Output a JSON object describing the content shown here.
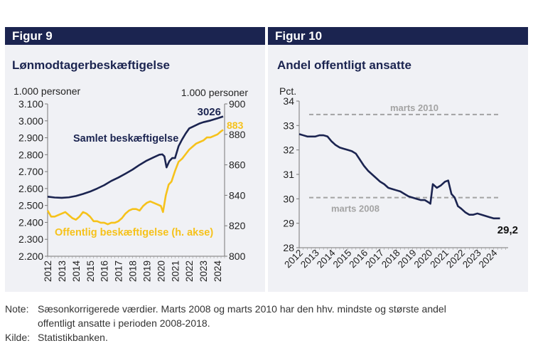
{
  "colors": {
    "header_bg": "#1b2450",
    "navy": "#1b2450",
    "yellow": "#f6c21b",
    "grey": "#a3a3a3",
    "panel_bg": "#f0f1f5"
  },
  "figures": [
    {
      "header": "Figur 9",
      "title": "Lønmodtagerbeskæftigelse",
      "chart_data": {
        "type": "line",
        "left_axis_unit": "1.000 personer",
        "right_axis_unit": "1.000 personer",
        "left_ylim": [
          2200,
          3100
        ],
        "right_ylim": [
          800,
          900
        ],
        "left_ticks": [
          "3.100",
          "3.000",
          "2.900",
          "2.800",
          "2.700",
          "2.600",
          "2.500",
          "2.400",
          "2.300",
          "2.200"
        ],
        "right_ticks": [
          "900",
          "880",
          "860",
          "840",
          "820",
          "800"
        ],
        "x_ticks": [
          "2012",
          "2013",
          "2014",
          "2015",
          "2016",
          "2017",
          "2018",
          "2019",
          "2020",
          "2021",
          "2022",
          "2023",
          "2024"
        ],
        "series": [
          {
            "name": "Samlet beskæftigelse",
            "axis": "left",
            "end_label": "3026",
            "x": [
              2012.0,
              2012.5,
              2013.0,
              2013.5,
              2014.0,
              2014.5,
              2015.0,
              2015.5,
              2016.0,
              2016.5,
              2017.0,
              2017.5,
              2018.0,
              2018.5,
              2019.0,
              2019.5,
              2019.9,
              2020.1,
              2020.25,
              2020.4,
              2020.6,
              2020.8,
              2021.0,
              2021.25,
              2021.5,
              2021.75,
              2022.0,
              2022.25,
              2022.5,
              2022.75,
              2023.0,
              2023.5,
              2024.0,
              2024.4
            ],
            "values": [
              2552,
              2547,
              2545,
              2548,
              2556,
              2568,
              2582,
              2600,
              2620,
              2645,
              2665,
              2688,
              2712,
              2740,
              2765,
              2785,
              2800,
              2802,
              2790,
              2725,
              2762,
              2780,
              2780,
              2850,
              2890,
              2925,
              2955,
              2965,
              2975,
              2985,
              2992,
              3002,
              3015,
              3026
            ]
          },
          {
            "name": "Offentlig beskæftigelse (h. akse)",
            "axis": "right",
            "end_label": "883",
            "x": [
              2012.0,
              2012.25,
              2012.5,
              2012.75,
              2013.0,
              2013.25,
              2013.5,
              2013.75,
              2014.0,
              2014.25,
              2014.5,
              2014.75,
              2015.0,
              2015.25,
              2015.5,
              2015.75,
              2016.0,
              2016.25,
              2016.5,
              2016.75,
              2017.0,
              2017.25,
              2017.5,
              2017.75,
              2018.0,
              2018.25,
              2018.5,
              2018.75,
              2019.0,
              2019.25,
              2019.5,
              2019.75,
              2020.0,
              2020.15,
              2020.35,
              2020.55,
              2020.75,
              2021.0,
              2021.25,
              2021.5,
              2021.75,
              2022.0,
              2022.25,
              2022.5,
              2022.75,
              2023.0,
              2023.25,
              2023.5,
              2023.75,
              2024.0,
              2024.25,
              2024.4
            ],
            "values": [
              830,
              826,
              826,
              827,
              828,
              829,
              827,
              825,
              824,
              826,
              829,
              828,
              826,
              823,
              823,
              822,
              822,
              821,
              822,
              822,
              823,
              825,
              828,
              830,
              831,
              831,
              830,
              833,
              835,
              836,
              835,
              834,
              833,
              829,
              840,
              847,
              849,
              856,
              862,
              864,
              867,
              870,
              872,
              874,
              875,
              876,
              878,
              878,
              879,
              880,
              882,
              883
            ]
          }
        ]
      }
    },
    {
      "header": "Figur 10",
      "title": "Andel offentligt ansatte",
      "chart_data": {
        "type": "line",
        "y_unit": "Pct.",
        "ylim": [
          28,
          34
        ],
        "y_ticks": [
          "34",
          "33",
          "32",
          "31",
          "30",
          "29",
          "28"
        ],
        "x_ticks": [
          "2012",
          "2013",
          "2014",
          "2015",
          "2016",
          "2017",
          "2018",
          "2019",
          "2020",
          "2021",
          "2022",
          "2023",
          "2024"
        ],
        "reference_lines": [
          {
            "label": "marts 2010",
            "value": 33.45
          },
          {
            "label": "marts 2008",
            "value": 30.05
          }
        ],
        "series": [
          {
            "end_label": "29,2",
            "x": [
              2012.0,
              2012.25,
              2012.5,
              2012.75,
              2013.0,
              2013.25,
              2013.5,
              2013.75,
              2014.0,
              2014.25,
              2014.5,
              2014.75,
              2015.0,
              2015.25,
              2015.5,
              2015.75,
              2016.0,
              2016.25,
              2016.5,
              2016.75,
              2017.0,
              2017.25,
              2017.5,
              2017.75,
              2018.0,
              2018.25,
              2018.5,
              2018.75,
              2019.0,
              2019.25,
              2019.5,
              2019.75,
              2020.0,
              2020.1,
              2020.25,
              2020.5,
              2020.75,
              2021.0,
              2021.2,
              2021.4,
              2021.6,
              2021.8,
              2022.0,
              2022.25,
              2022.5,
              2022.75,
              2023.0,
              2023.25,
              2023.5,
              2023.75,
              2024.0,
              2024.25,
              2024.4
            ],
            "values": [
              32.65,
              32.6,
              32.55,
              32.55,
              32.55,
              32.6,
              32.6,
              32.55,
              32.35,
              32.2,
              32.1,
              32.05,
              32.0,
              31.95,
              31.85,
              31.6,
              31.35,
              31.15,
              31.0,
              30.85,
              30.7,
              30.6,
              30.45,
              30.4,
              30.35,
              30.3,
              30.2,
              30.1,
              30.05,
              30.0,
              29.95,
              29.95,
              29.85,
              29.8,
              30.6,
              30.45,
              30.55,
              30.7,
              30.75,
              30.2,
              30.05,
              29.7,
              29.6,
              29.45,
              29.35,
              29.35,
              29.4,
              29.35,
              29.3,
              29.25,
              29.2,
              29.2,
              29.2
            ]
          }
        ]
      }
    }
  ],
  "note": {
    "note_label": "Note:",
    "note_line1": "Sæsonkorrigerede værdier. Marts 2008 og marts 2010 har den hhv. mindste og største andel",
    "note_line2": "offentligt ansatte i perioden 2008-2018.",
    "source_label": "Kilde:",
    "source_text": "Statistikbanken."
  }
}
